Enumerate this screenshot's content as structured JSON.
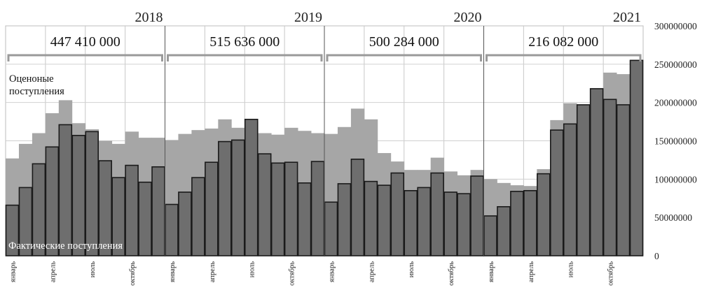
{
  "chart_data": {
    "type": "bar",
    "title": "",
    "xlabel": "",
    "ylabel": "",
    "ylim": [
      0,
      300000000
    ],
    "y_ticks": [
      "300000000",
      "250000000",
      "200000000",
      "150000000",
      "100000000",
      "50000000",
      "0"
    ],
    "month_labels": [
      "январь",
      "апрель",
      "июль",
      "октябрь"
    ],
    "years": [
      {
        "label": "2018",
        "total": "447 410 000"
      },
      {
        "label": "2019",
        "total": "515 636 000"
      },
      {
        "label": "2020",
        "total": "500 284 000"
      },
      {
        "label": "2021",
        "total": "216 082 000"
      }
    ],
    "series": [
      {
        "name": "Оценоные поступления",
        "color": "#a6a6a6",
        "values": [
          127000000,
          146000000,
          160000000,
          186000000,
          203000000,
          173000000,
          165000000,
          150000000,
          146000000,
          162000000,
          154000000,
          154000000,
          151000000,
          159000000,
          164000000,
          166000000,
          178000000,
          167000000,
          175000000,
          160000000,
          158000000,
          167000000,
          163000000,
          160000000,
          159000000,
          168000000,
          192000000,
          178000000,
          134000000,
          123000000,
          112000000,
          112000000,
          128000000,
          110000000,
          105000000,
          112000000,
          100000000,
          95000000,
          92000000,
          91000000,
          113000000,
          177000000,
          199000000,
          196000000,
          218000000,
          239000000,
          237000000,
          255000000
        ]
      },
      {
        "name": "Фактические поступления",
        "color": "#6e6e6e",
        "values": [
          66000000,
          89000000,
          120000000,
          142000000,
          171000000,
          157000000,
          162000000,
          124000000,
          102000000,
          118000000,
          96000000,
          116000000,
          67000000,
          83000000,
          102000000,
          122000000,
          149000000,
          151000000,
          178000000,
          133000000,
          121000000,
          122000000,
          95000000,
          123000000,
          70000000,
          94000000,
          126000000,
          97000000,
          92000000,
          108000000,
          85000000,
          89000000,
          108000000,
          83000000,
          81000000,
          104000000,
          52000000,
          64000000,
          84000000,
          85000000,
          107000000,
          164000000,
          172000000,
          197000000,
          218000000,
          204000000,
          197000000,
          255000000
        ]
      }
    ],
    "annotations": {
      "estimated_label_line1": "Оценоные",
      "estimated_label_line2": "поступления",
      "actual_label": "Фактические поступления"
    },
    "grid": true,
    "legend": "none"
  }
}
